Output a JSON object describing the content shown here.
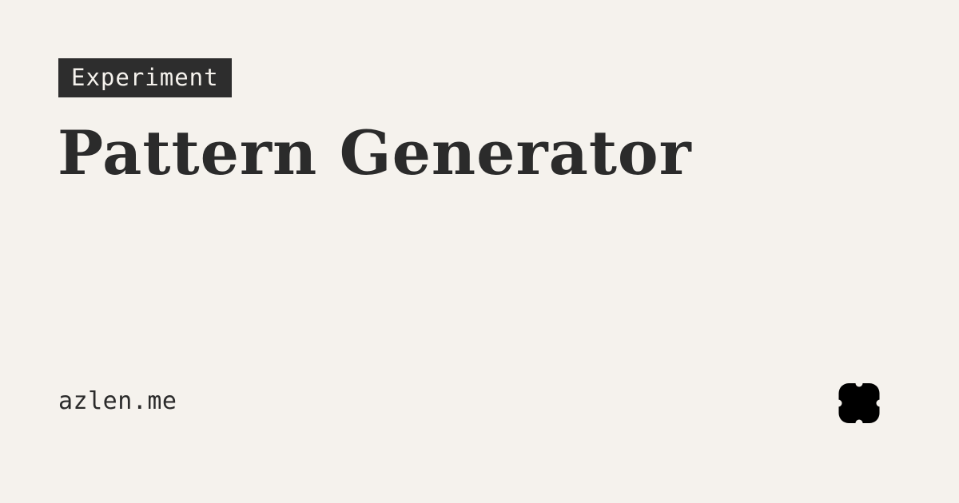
{
  "card": {
    "tag_label": "Experiment",
    "title": "Pattern Generator",
    "site": "azlen.me",
    "logo_icon": "four-petal-logo-icon",
    "colors": {
      "background": "#f5f2ed",
      "text": "#2b2b2b",
      "tag_background": "#2d2d2d",
      "tag_text": "#f5f2ed"
    }
  }
}
